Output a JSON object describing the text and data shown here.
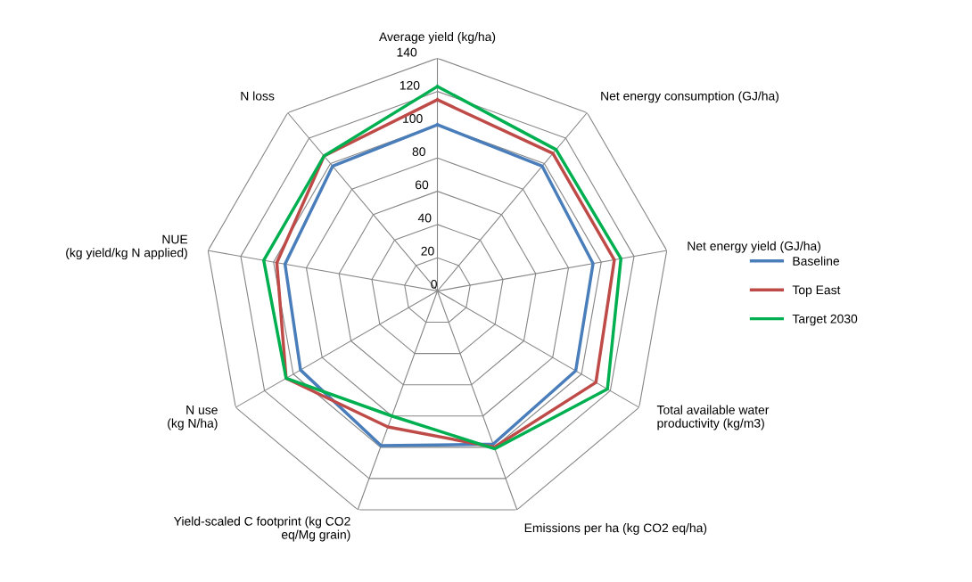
{
  "chart_data": {
    "type": "radar",
    "categories": [
      "Average yield (kg/ha)",
      "Net energy consumption (GJ/ha)",
      "Net energy yield (GJ/ha)",
      "Total available water\nproductivity (kg/m3)",
      "Emissions per ha (kg CO2 eq/ha)",
      "Yield-scaled C footprint (kg CO2\neq/Mg grain)",
      "N use\n(kg N/ha)",
      "NUE\n(kg yield/kg N applied)",
      "N loss"
    ],
    "series": [
      {
        "name": "Baseline",
        "color": "#4a7ebb",
        "values": [
          100,
          98,
          95,
          96,
          98,
          99,
          95,
          93,
          98
        ]
      },
      {
        "name": "Top East",
        "color": "#be4b48",
        "values": [
          115,
          108,
          108,
          110,
          100,
          87,
          105,
          98,
          106
        ]
      },
      {
        "name": "Target 2030",
        "color": "#00b050",
        "values": [
          123,
          111,
          112,
          118,
          101,
          80,
          105,
          106,
          106
        ]
      }
    ],
    "ylim": [
      0,
      140
    ],
    "yticks": [
      0,
      20,
      40,
      60,
      80,
      100,
      120,
      140
    ],
    "grid": true,
    "legend": "right",
    "marker": "none",
    "line_style": "solid"
  }
}
